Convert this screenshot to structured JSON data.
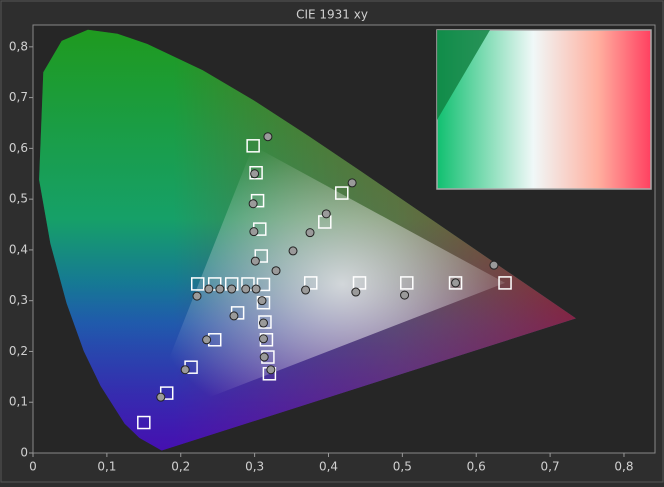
{
  "chart_data": {
    "type": "scatter",
    "title": "CIE 1931 xy",
    "xlim": [
      0,
      0.842
    ],
    "ylim": [
      0,
      0.843
    ],
    "xticks": [
      0,
      {
        "value": 0.1,
        "label": "0,1"
      },
      {
        "value": 0.2,
        "label": "0,2"
      },
      {
        "value": 0.3,
        "label": "0,3"
      },
      {
        "value": 0.4,
        "label": "0,4"
      },
      {
        "value": 0.5,
        "label": "0,5"
      },
      {
        "value": 0.6,
        "label": "0,6"
      },
      {
        "value": 0.7,
        "label": "0,7"
      },
      {
        "value": 0.8,
        "label": "0,8"
      }
    ],
    "yticks": [
      0,
      {
        "value": 0.1,
        "label": "0,1"
      },
      {
        "value": 0.2,
        "label": "0,2"
      },
      {
        "value": 0.3,
        "label": "0,3"
      },
      {
        "value": 0.4,
        "label": "0,4"
      },
      {
        "value": 0.5,
        "label": "0,5"
      },
      {
        "value": 0.6,
        "label": "0,6"
      },
      {
        "value": 0.7,
        "label": "0,7"
      },
      {
        "value": 0.8,
        "label": "0,8"
      }
    ],
    "series": [
      {
        "marker": "square",
        "color": "#ffffff",
        "x": [
          0.639,
          0.298,
          0.15,
          0.312,
          0.572,
          0.506,
          0.442,
          0.376,
          0.302,
          0.304,
          0.307,
          0.309,
          0.181,
          0.214,
          0.246,
          0.277,
          0.223,
          0.246,
          0.269,
          0.291,
          0.312,
          0.314,
          0.316,
          0.318,
          0.32,
          0.418,
          0.395
        ],
        "values": [
          0.335,
          0.605,
          0.06,
          0.332,
          0.335,
          0.335,
          0.335,
          0.335,
          0.552,
          0.497,
          0.441,
          0.388,
          0.118,
          0.169,
          0.223,
          0.276,
          0.333,
          0.333,
          0.333,
          0.333,
          0.296,
          0.258,
          0.223,
          0.189,
          0.156,
          0.512,
          0.455
        ]
      },
      {
        "marker": "circle",
        "color": "#9a9a9a",
        "x": [
          0.318,
          0.3,
          0.298,
          0.299,
          0.301,
          0.329,
          0.352,
          0.375,
          0.397,
          0.432,
          0.624,
          0.572,
          0.503,
          0.437,
          0.369,
          0.302,
          0.288,
          0.269,
          0.253,
          0.238,
          0.222,
          0.31,
          0.312,
          0.312,
          0.313,
          0.322,
          0.272,
          0.235,
          0.206,
          0.173
        ],
        "values": [
          0.623,
          0.55,
          0.491,
          0.436,
          0.378,
          0.359,
          0.398,
          0.434,
          0.471,
          0.532,
          0.37,
          0.335,
          0.311,
          0.317,
          0.321,
          0.323,
          0.323,
          0.323,
          0.323,
          0.323,
          0.309,
          0.3,
          0.256,
          0.225,
          0.189,
          0.164,
          0.27,
          0.223,
          0.164,
          0.11
        ]
      }
    ]
  }
}
